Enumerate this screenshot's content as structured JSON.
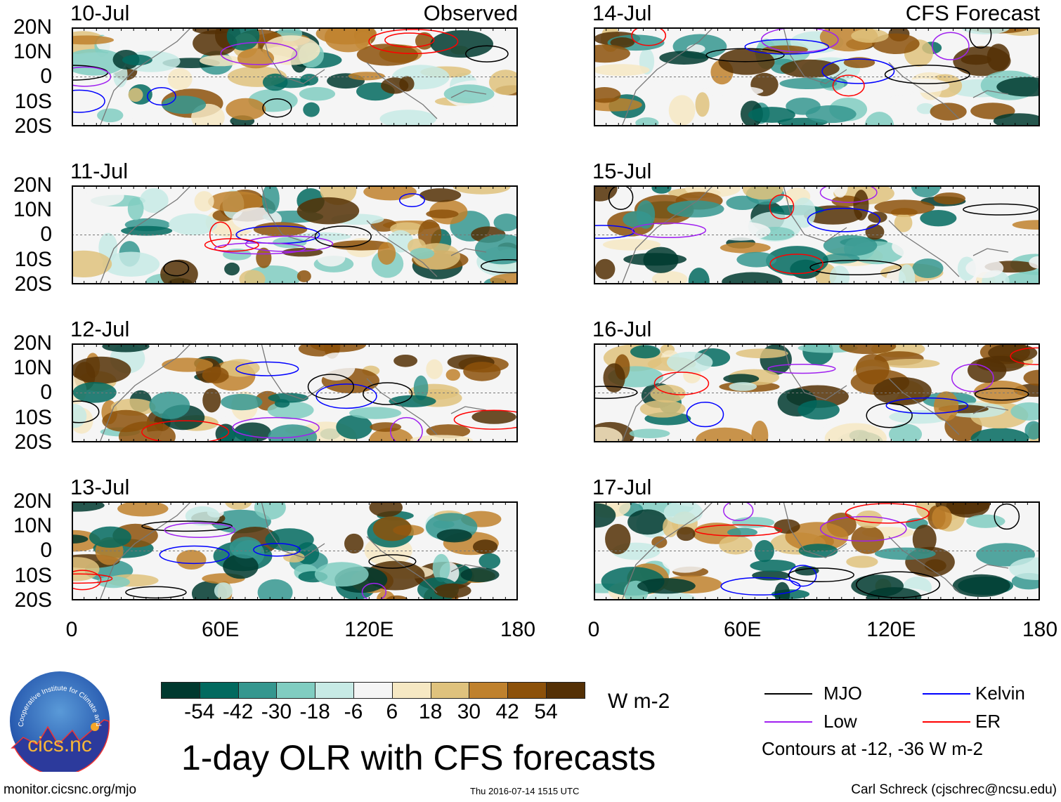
{
  "panels": [
    {
      "date": "10-Jul",
      "title": "Observed",
      "col": 0,
      "row": 0
    },
    {
      "date": "11-Jul",
      "col": 0,
      "row": 1
    },
    {
      "date": "12-Jul",
      "col": 0,
      "row": 2
    },
    {
      "date": "13-Jul",
      "col": 0,
      "row": 3
    },
    {
      "date": "14-Jul",
      "title": "CFS Forecast",
      "col": 1,
      "row": 0
    },
    {
      "date": "15-Jul",
      "col": 1,
      "row": 1
    },
    {
      "date": "16-Jul",
      "col": 1,
      "row": 2
    },
    {
      "date": "17-Jul",
      "col": 1,
      "row": 3
    }
  ],
  "lat_ticks": [
    "20N",
    "10N",
    "0",
    "10S",
    "20S"
  ],
  "lon_ticks": [
    "0",
    "60E",
    "120E",
    "180"
  ],
  "colorbar": {
    "colors": [
      "#00392f",
      "#026a5f",
      "#35978f",
      "#80cdc1",
      "#c7eae5",
      "#f5f5f5",
      "#f6e8c3",
      "#dfc27d",
      "#bf812d",
      "#8c510a",
      "#543005"
    ],
    "labels": [
      "-54",
      "-42",
      "-30",
      "-18",
      "-6",
      "6",
      "18",
      "30",
      "42",
      "54"
    ],
    "units": "W m-2"
  },
  "legend": {
    "items": [
      {
        "label": "MJO",
        "color": "#000000"
      },
      {
        "label": "Kelvin",
        "color": "#0000ff"
      },
      {
        "label": "Low",
        "color": "#a020f0"
      },
      {
        "label": "ER",
        "color": "#ff0000"
      }
    ],
    "note": "Contours at -12, -36 W m-2"
  },
  "title": "1-day OLR with CFS forecasts",
  "logo_text": "cics.nc",
  "logo_ring": "Cooperative Institute for Climate and Satellites",
  "footer": {
    "url": "monitor.cicsnc.org/mjo",
    "timestamp": "Thu 2016-07-14 1515 UTC",
    "credit": "Carl Schreck (cjschrec@ncsu.edu)"
  }
}
